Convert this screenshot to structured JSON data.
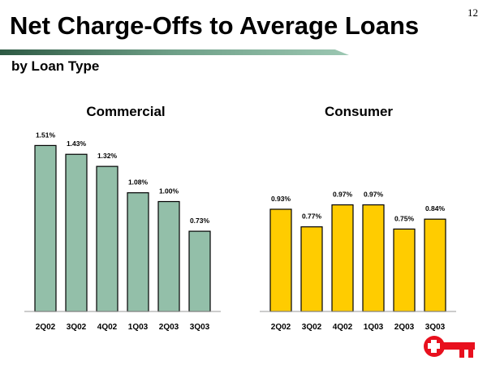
{
  "slide": {
    "title": "Net Charge-Offs to Average Loans",
    "subtitle": "by Loan Type",
    "page_number": "12",
    "logo": "key-logo-icon"
  },
  "chart_data": [
    {
      "type": "bar",
      "title": "Commercial",
      "categories": [
        "2Q02",
        "3Q02",
        "4Q02",
        "1Q03",
        "2Q03",
        "3Q03"
      ],
      "values": [
        1.51,
        1.43,
        1.32,
        1.08,
        1.0,
        0.73
      ],
      "labels": [
        "1.51%",
        "1.43%",
        "1.32%",
        "1.08%",
        "1.00%",
        "0.73%"
      ],
      "ylim": [
        0,
        1.6
      ],
      "color": "#93bfa9",
      "grid": false
    },
    {
      "type": "bar",
      "title": "Consumer",
      "categories": [
        "2Q02",
        "3Q02",
        "4Q02",
        "1Q03",
        "2Q03",
        "3Q03"
      ],
      "values": [
        0.93,
        0.77,
        0.97,
        0.97,
        0.75,
        0.84
      ],
      "labels": [
        "0.93%",
        "0.77%",
        "0.97%",
        "0.97%",
        "0.75%",
        "0.84%"
      ],
      "ylim": [
        0,
        1.6
      ],
      "color": "#ffcc00",
      "grid": false
    }
  ]
}
